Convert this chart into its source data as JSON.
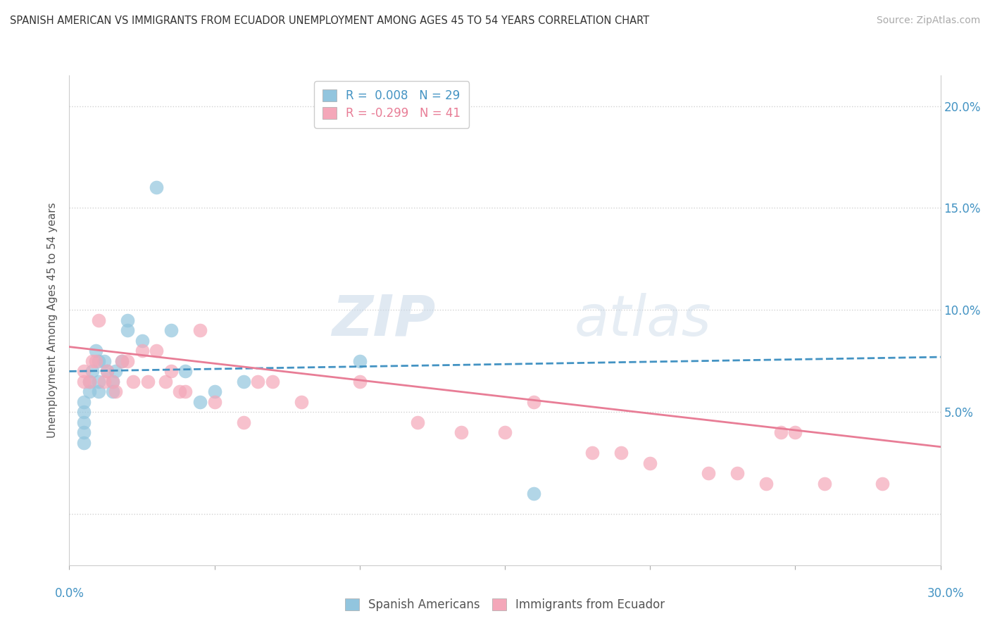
{
  "title": "SPANISH AMERICAN VS IMMIGRANTS FROM ECUADOR UNEMPLOYMENT AMONG AGES 45 TO 54 YEARS CORRELATION CHART",
  "source": "Source: ZipAtlas.com",
  "ylabel": "Unemployment Among Ages 45 to 54 years",
  "ytick_values": [
    0.0,
    0.05,
    0.1,
    0.15,
    0.2
  ],
  "ytick_labels_right": [
    "",
    "5.0%",
    "10.0%",
    "15.0%",
    "20.0%"
  ],
  "xlim": [
    0.0,
    0.3
  ],
  "ylim": [
    -0.025,
    0.215
  ],
  "blue_color": "#92c5de",
  "pink_color": "#f4a7b9",
  "blue_line_color": "#4393c3",
  "pink_line_color": "#e87d96",
  "watermark_zip": "ZIP",
  "watermark_atlas": "atlas",
  "blue_scatter_x": [
    0.005,
    0.005,
    0.005,
    0.005,
    0.005,
    0.007,
    0.007,
    0.008,
    0.009,
    0.01,
    0.01,
    0.01,
    0.012,
    0.013,
    0.015,
    0.015,
    0.016,
    0.018,
    0.02,
    0.02,
    0.025,
    0.03,
    0.035,
    0.04,
    0.045,
    0.05,
    0.06,
    0.1,
    0.16
  ],
  "blue_scatter_y": [
    0.055,
    0.05,
    0.045,
    0.04,
    0.035,
    0.065,
    0.06,
    0.07,
    0.08,
    0.075,
    0.065,
    0.06,
    0.075,
    0.07,
    0.065,
    0.06,
    0.07,
    0.075,
    0.095,
    0.09,
    0.085,
    0.16,
    0.09,
    0.07,
    0.055,
    0.06,
    0.065,
    0.075,
    0.01
  ],
  "pink_scatter_x": [
    0.005,
    0.005,
    0.007,
    0.008,
    0.009,
    0.01,
    0.012,
    0.013,
    0.015,
    0.016,
    0.018,
    0.02,
    0.022,
    0.025,
    0.027,
    0.03,
    0.033,
    0.035,
    0.038,
    0.04,
    0.045,
    0.05,
    0.06,
    0.065,
    0.07,
    0.08,
    0.1,
    0.12,
    0.135,
    0.15,
    0.16,
    0.18,
    0.19,
    0.2,
    0.22,
    0.23,
    0.24,
    0.245,
    0.25,
    0.26,
    0.28
  ],
  "pink_scatter_y": [
    0.07,
    0.065,
    0.065,
    0.075,
    0.075,
    0.095,
    0.065,
    0.07,
    0.065,
    0.06,
    0.075,
    0.075,
    0.065,
    0.08,
    0.065,
    0.08,
    0.065,
    0.07,
    0.06,
    0.06,
    0.09,
    0.055,
    0.045,
    0.065,
    0.065,
    0.055,
    0.065,
    0.045,
    0.04,
    0.04,
    0.055,
    0.03,
    0.03,
    0.025,
    0.02,
    0.02,
    0.015,
    0.04,
    0.04,
    0.015,
    0.015
  ],
  "blue_line_x": [
    0.0,
    0.3
  ],
  "blue_line_y": [
    0.07,
    0.077
  ],
  "pink_line_x": [
    0.0,
    0.3
  ],
  "pink_line_y": [
    0.082,
    0.033
  ]
}
